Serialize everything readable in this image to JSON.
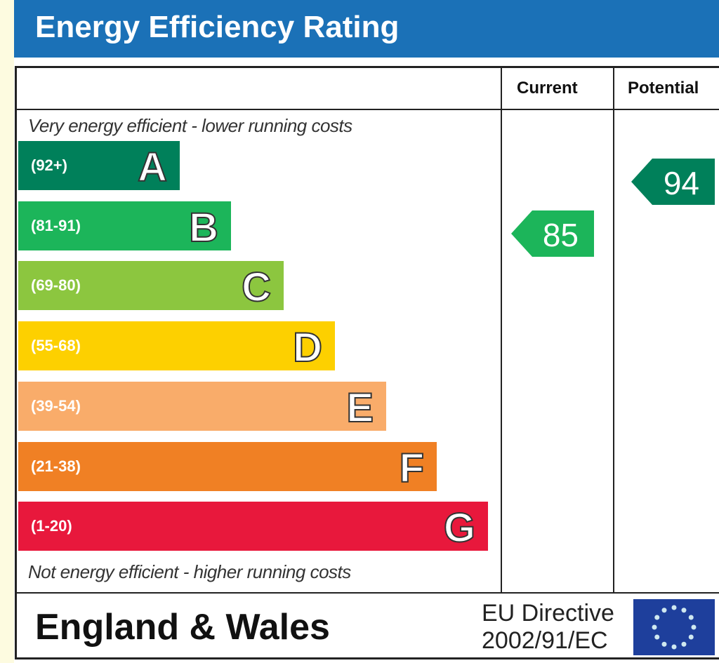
{
  "title": "Energy Efficiency Rating",
  "chart_data": {
    "type": "bar",
    "title": "Energy Efficiency Rating",
    "columns": [
      "Current",
      "Potential"
    ],
    "top_note": "Very energy efficient - lower running costs",
    "bottom_note": "Not energy efficient - higher running costs",
    "bands": [
      {
        "letter": "A",
        "range": "(92+)",
        "color": "#00805a"
      },
      {
        "letter": "B",
        "range": "(81-91)",
        "color": "#1cb55a"
      },
      {
        "letter": "C",
        "range": "(69-80)",
        "color": "#8cc63f"
      },
      {
        "letter": "D",
        "range": "(55-68)",
        "color": "#fdd000"
      },
      {
        "letter": "E",
        "range": "(39-54)",
        "color": "#f9ac6a"
      },
      {
        "letter": "F",
        "range": "(21-38)",
        "color": "#f08024"
      },
      {
        "letter": "G",
        "range": "(1-20)",
        "color": "#e8183c"
      }
    ],
    "current": {
      "value": "85",
      "band": "B"
    },
    "potential": {
      "value": "94",
      "band": "A"
    }
  },
  "footer": {
    "region": "England & Wales",
    "directive_line1": "EU Directive",
    "directive_line2": "2002/91/EC"
  }
}
